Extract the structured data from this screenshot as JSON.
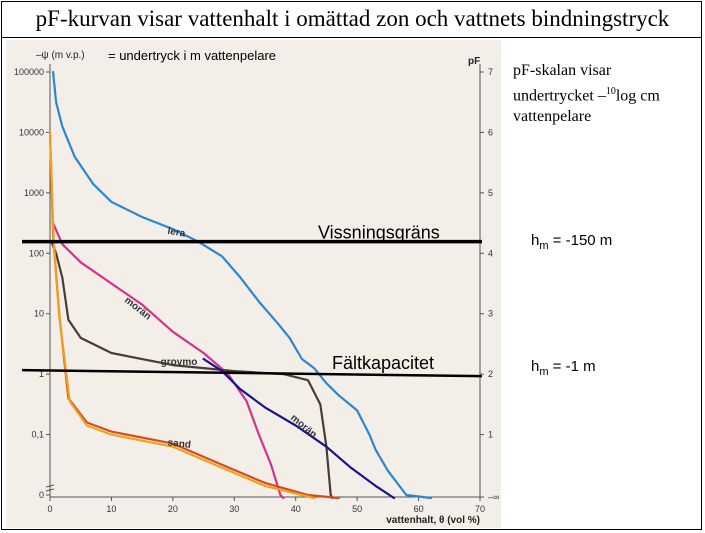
{
  "title": "pF-kurvan visar vattenhalt i omättad zon och vattnets bindningstryck",
  "side_notes": {
    "pf_scale_line1": "pF-skalan visar",
    "pf_scale_line2_pre": "undertrycket –",
    "pf_scale_sup": "10",
    "pf_scale_line2_post": "log cm",
    "pf_scale_line3": "vattenpelare",
    "hm1_base": "h",
    "hm1_sub": "m",
    "hm1_value": " = -150 m",
    "hm2_base": "h",
    "hm2_sub": "m",
    "hm2_value": " = -1 m"
  },
  "chart_data": {
    "type": "line",
    "ylabel_left": "–ψ (m v.p.)",
    "ylabel_left_note": "= undertryck i m vattenpelare",
    "ylabel_right": "pF",
    "xlabel": "vattenhalt, θ (vol %)",
    "xlim": [
      0,
      70
    ],
    "ylim_pF": [
      -1,
      7
    ],
    "x_ticks": [
      "0",
      "10",
      "20",
      "30",
      "40",
      "50",
      "60",
      "70"
    ],
    "y_ticks_left": [
      "100000",
      "10000",
      "1000",
      "100",
      "10",
      "1",
      "0,1",
      "0"
    ],
    "y_ticks_right": [
      "7",
      "6",
      "5",
      "4",
      "3",
      "2",
      "1",
      "–∞"
    ],
    "annotations": {
      "wilting": "Vissningsgräns",
      "field": "Fältkapacitet"
    },
    "reference_lines": [
      {
        "name": "Vissningsgräns",
        "psi_m": 150
      },
      {
        "name": "Fältkapacitet",
        "psi_m": 1
      }
    ],
    "series": [
      {
        "name": "lera",
        "color": "#2a86d0",
        "points": [
          [
            0.5,
            7
          ],
          [
            1,
            6.5
          ],
          [
            2,
            6.1
          ],
          [
            4,
            5.6
          ],
          [
            7,
            5.15
          ],
          [
            10,
            4.85
          ],
          [
            15,
            4.6
          ],
          [
            20,
            4.4
          ],
          [
            24,
            4.2
          ],
          [
            28,
            3.95
          ],
          [
            31,
            3.6
          ],
          [
            34,
            3.2
          ],
          [
            37,
            2.85
          ],
          [
            39,
            2.6
          ],
          [
            41,
            2.25
          ],
          [
            43,
            2.1
          ],
          [
            45,
            1.85
          ],
          [
            47,
            1.65
          ],
          [
            50,
            1.4
          ],
          [
            52,
            1.0
          ],
          [
            53,
            0.75
          ],
          [
            55,
            0.4
          ],
          [
            58,
            0.0
          ],
          [
            62,
            -0.05
          ]
        ]
      },
      {
        "name": "morän",
        "color": "#d8308a",
        "points": [
          [
            0.5,
            4.5
          ],
          [
            2,
            4.15
          ],
          [
            5,
            3.85
          ],
          [
            10,
            3.5
          ],
          [
            15,
            3.15
          ],
          [
            20,
            2.7
          ],
          [
            25,
            2.35
          ],
          [
            29,
            2.0
          ],
          [
            32,
            1.55
          ],
          [
            34,
            1.0
          ],
          [
            36,
            0.5
          ],
          [
            37.5,
            0.0
          ],
          [
            38,
            -0.05
          ]
        ]
      },
      {
        "name": "grovmo",
        "color": "#4a3b38",
        "points": [
          [
            0.2,
            4.2
          ],
          [
            1,
            4.0
          ],
          [
            2,
            3.6
          ],
          [
            3,
            2.9
          ],
          [
            5,
            2.6
          ],
          [
            10,
            2.35
          ],
          [
            20,
            2.15
          ],
          [
            30,
            2.05
          ],
          [
            38,
            2.0
          ],
          [
            42,
            1.9
          ],
          [
            44,
            1.5
          ],
          [
            45,
            0.8
          ],
          [
            45.7,
            0.0
          ],
          [
            46,
            -0.05
          ]
        ]
      },
      {
        "name": "sand",
        "color": "#d84b18",
        "points": [
          [
            0,
            6.0
          ],
          [
            0.5,
            4.3
          ],
          [
            1.5,
            3.0
          ],
          [
            3,
            1.6
          ],
          [
            6,
            1.2
          ],
          [
            10,
            1.05
          ],
          [
            20,
            0.85
          ],
          [
            28,
            0.5
          ],
          [
            35,
            0.2
          ],
          [
            42,
            0.0
          ],
          [
            47,
            -0.05
          ]
        ]
      },
      {
        "name": "sand_orange",
        "color": "#f0a020",
        "points": [
          [
            0,
            6.0
          ],
          [
            0.6,
            4.2
          ],
          [
            1.6,
            2.9
          ],
          [
            3.2,
            1.55
          ],
          [
            6,
            1.15
          ],
          [
            10,
            1.0
          ],
          [
            20,
            0.8
          ],
          [
            28,
            0.45
          ],
          [
            35,
            0.15
          ],
          [
            43,
            -0.05
          ]
        ]
      },
      {
        "name": "morän2",
        "color": "#14148c",
        "points": [
          [
            25,
            2.25
          ],
          [
            28,
            2.05
          ],
          [
            31,
            1.75
          ],
          [
            35,
            1.45
          ],
          [
            40,
            1.15
          ],
          [
            45,
            0.8
          ],
          [
            49,
            0.45
          ],
          [
            53,
            0.15
          ],
          [
            56,
            -0.05
          ]
        ]
      }
    ],
    "curve_labels": [
      {
        "text": "lera",
        "x": 20.5,
        "pF": 4.3
      },
      {
        "text": "morän",
        "x": 14,
        "pF": 3.05
      },
      {
        "text": "grovmo",
        "x": 21,
        "pF": 2.15
      },
      {
        "text": "sand",
        "x": 21,
        "pF": 0.8
      },
      {
        "text": "morän",
        "x": 41,
        "pF": 1.1
      }
    ],
    "grid": false
  }
}
